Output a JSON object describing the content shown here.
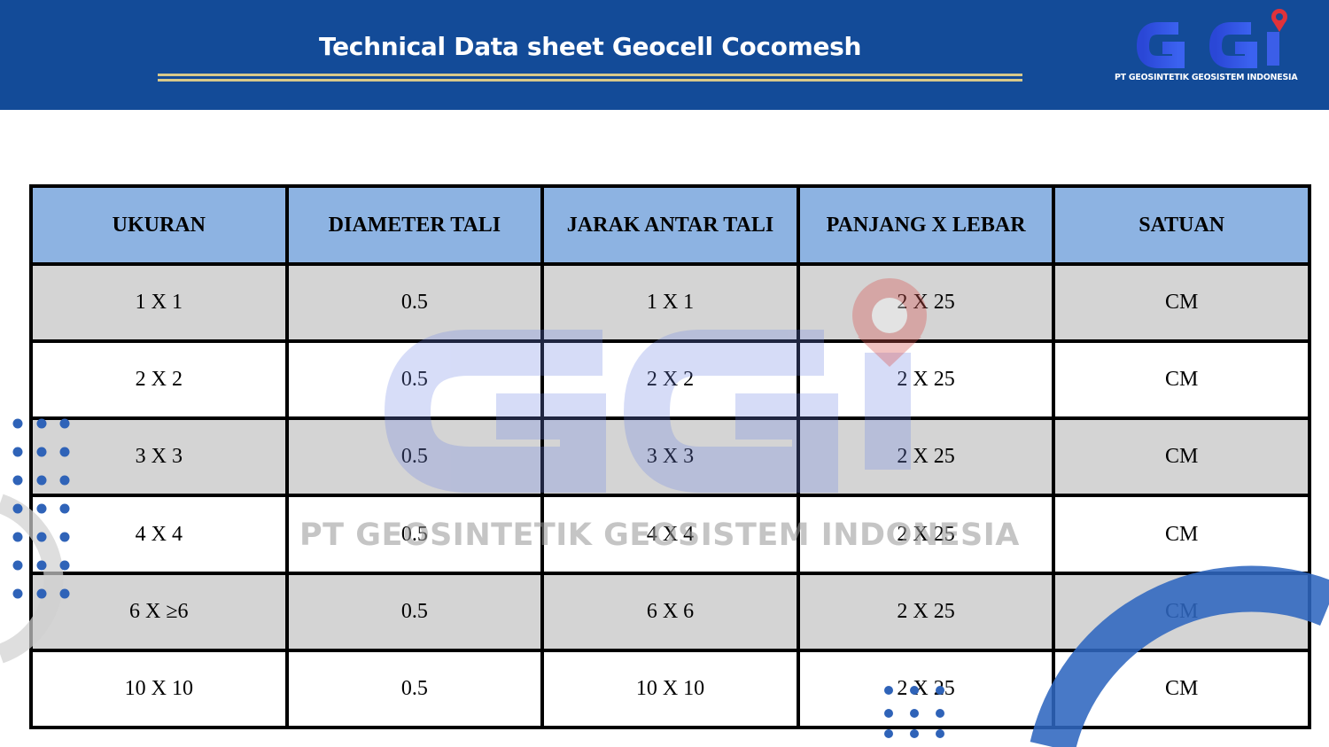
{
  "header": {
    "title": "Technical Data sheet Geocell Cocomesh",
    "background_color": "#134b98",
    "accent_line_color": "#d8c98a"
  },
  "logo": {
    "letters": "GGI",
    "caption": "PT GEOSINTETIK GEOSISTEM INDONESIA",
    "pin_icon": "location-pin-icon"
  },
  "table": {
    "headers": [
      "UKURAN",
      "DIAMETER TALI",
      "JARAK ANTAR TALI",
      "PANJANG X LEBAR",
      "SATUAN"
    ],
    "rows": [
      [
        "1 X 1",
        "0.5",
        "1 X 1",
        "2 X 25",
        "CM"
      ],
      [
        "2 X 2",
        "0.5",
        "2 X 2",
        "2 X 25",
        "CM"
      ],
      [
        "3 X 3",
        "0.5",
        "3 X 3",
        "2 X 25",
        "CM"
      ],
      [
        "4 X 4",
        "0.5",
        "4 X 4",
        "2 X 25",
        "CM"
      ],
      [
        "6 X ≥6",
        "0.5",
        "6 X 6",
        "2 X 25",
        "CM"
      ],
      [
        "10 X 10",
        "0.5",
        "10 X 10",
        "2 X 25",
        "CM"
      ]
    ],
    "header_color": "#8db3e2",
    "alt_row_color": "#d4d4d4"
  },
  "watermark": {
    "letters": "GGI",
    "caption": "PT GEOSINTETIK GEOSISTEM INDONESIA"
  }
}
